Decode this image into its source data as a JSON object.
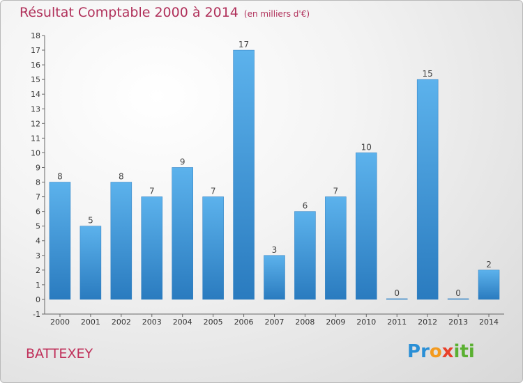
{
  "title": "Résultat Comptable 2000 à 2014",
  "subtitle": "(en milliers d'€)",
  "place": "BATTEXEY",
  "logo": {
    "letters": [
      {
        "ch": "P",
        "color": "#2a8fd6"
      },
      {
        "ch": "r",
        "color": "#2a8fd6"
      },
      {
        "ch": "o",
        "color": "#f39a1e"
      },
      {
        "ch": "x",
        "color": "#e8402a"
      },
      {
        "ch": "i",
        "color": "#5ab031"
      },
      {
        "ch": "t",
        "color": "#5ab031"
      },
      {
        "ch": "i",
        "color": "#5ab031"
      }
    ]
  },
  "chart_data": {
    "type": "bar",
    "title": "Résultat Comptable 2000 à 2014",
    "subtitle": "(en milliers d'€)",
    "categories": [
      "2000",
      "2001",
      "2002",
      "2003",
      "2004",
      "2005",
      "2006",
      "2007",
      "2008",
      "2009",
      "2010",
      "2011",
      "2012",
      "2013",
      "2014"
    ],
    "values": [
      8,
      5,
      8,
      7,
      9,
      7,
      17,
      3,
      6,
      7,
      10,
      0,
      15,
      0,
      2
    ],
    "ylim": [
      -1,
      18
    ],
    "yticks": [
      "-1",
      "0",
      "1",
      "2",
      "3",
      "4",
      "5",
      "6",
      "7",
      "8",
      "9",
      "10",
      "11",
      "12",
      "13",
      "14",
      "15",
      "16",
      "17",
      "18"
    ],
    "grid": false,
    "bar_color": "#3b95d8",
    "bar_color_light": "#5cb2ec",
    "bar_color_dark": "#2a7bbf"
  }
}
